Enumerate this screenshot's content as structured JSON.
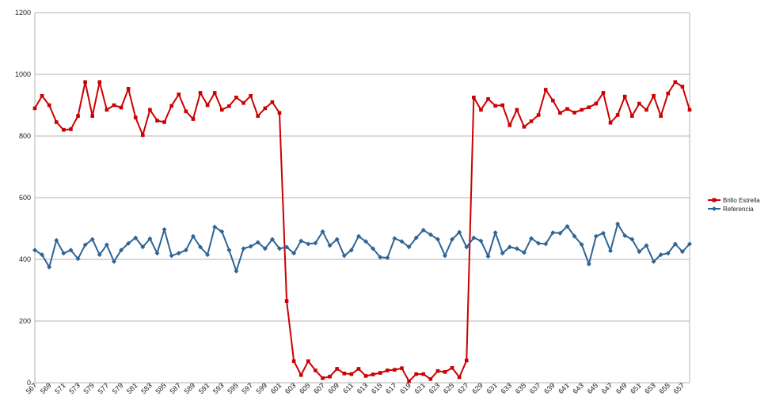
{
  "chart_data": {
    "type": "line",
    "title": "",
    "xlabel": "",
    "ylabel": "",
    "ylim": [
      0,
      1200
    ],
    "y_ticks": [
      0,
      200,
      400,
      600,
      800,
      1000,
      1200
    ],
    "grid": "horizontal",
    "legend_position": "right",
    "x": [
      567,
      568,
      569,
      570,
      571,
      572,
      573,
      574,
      575,
      576,
      577,
      578,
      579,
      580,
      581,
      582,
      583,
      584,
      585,
      586,
      587,
      588,
      589,
      590,
      591,
      592,
      593,
      594,
      595,
      596,
      597,
      598,
      599,
      600,
      601,
      602,
      603,
      604,
      605,
      606,
      607,
      608,
      609,
      610,
      611,
      612,
      613,
      614,
      615,
      616,
      617,
      618,
      619,
      620,
      621,
      622,
      623,
      624,
      625,
      626,
      627,
      628,
      629,
      630,
      631,
      632,
      633,
      634,
      635,
      636,
      637,
      638,
      639,
      640,
      641,
      642,
      643,
      644,
      645,
      646,
      647,
      648,
      649,
      650,
      651,
      652,
      653,
      654,
      655,
      656,
      657,
      658
    ],
    "x_tick_labels": [
      "567",
      "569",
      "571",
      "573",
      "575",
      "577",
      "579",
      "581",
      "583",
      "585",
      "587",
      "589",
      "591",
      "593",
      "595",
      "597",
      "599",
      "601",
      "603",
      "605",
      "607",
      "609",
      "611",
      "613",
      "615",
      "617",
      "619",
      "621",
      "623",
      "625",
      "627",
      "629",
      "631",
      "633",
      "635",
      "637",
      "639",
      "641",
      "643",
      "645",
      "647",
      "649",
      "651",
      "653",
      "655",
      "657"
    ],
    "series": [
      {
        "name": "Brillo Estrella",
        "color": "#cc0000",
        "marker": "square",
        "values": [
          890,
          930,
          900,
          845,
          820,
          822,
          865,
          975,
          865,
          975,
          885,
          900,
          892,
          953,
          860,
          803,
          885,
          850,
          845,
          898,
          935,
          880,
          855,
          940,
          900,
          940,
          885,
          897,
          925,
          907,
          930,
          865,
          890,
          910,
          875,
          265,
          70,
          25,
          70,
          40,
          15,
          20,
          45,
          30,
          28,
          45,
          22,
          27,
          32,
          40,
          42,
          47,
          5,
          28,
          28,
          12,
          38,
          35,
          48,
          18,
          72,
          925,
          885,
          920,
          898,
          900,
          835,
          885,
          830,
          848,
          868,
          950,
          915,
          875,
          888,
          876,
          885,
          893,
          905,
          940,
          843,
          868,
          928,
          865,
          905,
          885,
          930,
          865,
          938,
          975,
          960,
          885
        ]
      },
      {
        "name": "Referencia",
        "color": "#2e6496",
        "marker": "diamond",
        "values": [
          430,
          415,
          375,
          462,
          420,
          430,
          402,
          447,
          465,
          415,
          447,
          393,
          430,
          452,
          470,
          440,
          467,
          420,
          497,
          412,
          420,
          430,
          475,
          440,
          415,
          505,
          490,
          430,
          362,
          435,
          442,
          455,
          435,
          465,
          435,
          440,
          420,
          460,
          450,
          453,
          490,
          445,
          465,
          412,
          430,
          475,
          458,
          435,
          407,
          405,
          468,
          458,
          440,
          470,
          495,
          480,
          465,
          412,
          465,
          488,
          440,
          470,
          460,
          410,
          487,
          420,
          440,
          435,
          422,
          468,
          452,
          450,
          487,
          485,
          507,
          475,
          448,
          385,
          475,
          485,
          428,
          515,
          477,
          465,
          425,
          445,
          393,
          415,
          420,
          450,
          425,
          450
        ]
      }
    ]
  }
}
